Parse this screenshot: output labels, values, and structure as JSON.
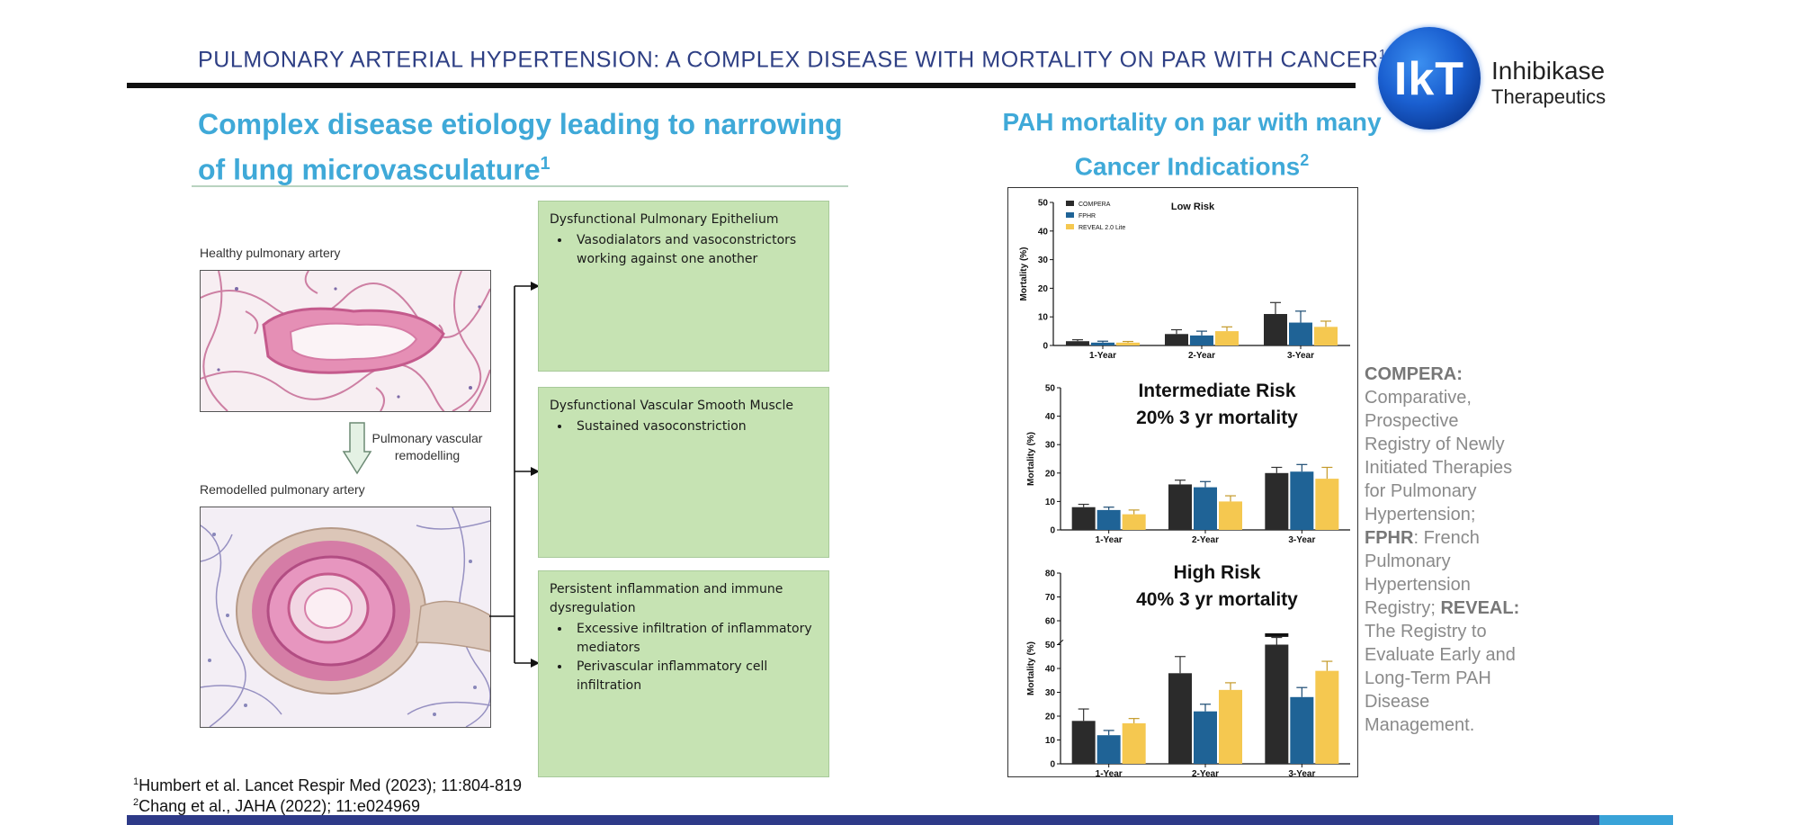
{
  "header": {
    "title": "PULMONARY ARTERIAL HYPERTENSION:  A COMPLEX DISEASE WITH MORTALITY ON PAR WITH CANCER",
    "title_sup": "1"
  },
  "logo": {
    "mark": "IkT",
    "name": "Inhibikase",
    "sub": "Therapeutics"
  },
  "left": {
    "heading": "Complex disease etiology leading to narrowing of lung microvasculature",
    "heading_sup": "1",
    "healthy_label": "Healthy pulmonary artery",
    "remodelling_label": "Pulmonary vascular remodelling",
    "remodelled_label": "Remodelled pulmonary artery",
    "boxes": [
      {
        "title": "Dysfunctional Pulmonary Epithelium",
        "bullets": [
          "Vasodialators and vasoconstrictors working against one another"
        ]
      },
      {
        "title": "Dysfunctional Vascular Smooth Muscle",
        "bullets": [
          "Sustained vasoconstriction"
        ]
      },
      {
        "title": "Persistent inflammation and immune dysregulation",
        "bullets": [
          "Excessive infiltration of inflammatory mediators",
          "Perivascular inflammatory cell infiltration"
        ]
      }
    ]
  },
  "right": {
    "heading_line1": "PAH mortality on par with many",
    "heading_line2": "Cancer Indications",
    "heading_sup": "2",
    "side_notes": {
      "compera_label": "COMPERA:",
      "compera_text": "Comparative, Prospective Registry of Newly Initiated Therapies for Pulmonary Hypertension;",
      "fphr_label": "FPHR",
      "fphr_text": ": French Pulmonary Hypertension Registry;",
      "reveal_label": "REVEAL:",
      "reveal_text": "The Registry to Evaluate Early and Long-Term PAH Disease Management."
    }
  },
  "colors": {
    "compera": "#2b2b2b",
    "fphr": "#1f6396",
    "reveal": "#f5c850"
  },
  "chart_data": [
    {
      "type": "bar",
      "title": "Low Risk",
      "categories": [
        "1-Year",
        "2-Year",
        "3-Year"
      ],
      "ylabel": "Mortality (%)",
      "ylim": [
        0,
        50
      ],
      "yticks": [
        0,
        10,
        20,
        30,
        40,
        50
      ],
      "legend": [
        "COMPERA",
        "FPHR",
        "REVEAL 2.0 Lite"
      ],
      "series": [
        {
          "name": "COMPERA",
          "values": [
            1.5,
            4,
            11
          ],
          "err": [
            0.5,
            1.5,
            4
          ]
        },
        {
          "name": "FPHR",
          "values": [
            1,
            3.5,
            8
          ],
          "err": [
            0.5,
            1.5,
            4
          ]
        },
        {
          "name": "REVEAL 2.0 Lite",
          "values": [
            1,
            5,
            6.5
          ],
          "err": [
            0.4,
            1.5,
            2
          ]
        }
      ]
    },
    {
      "type": "bar",
      "title": "Intermediate Risk",
      "subtitle": "20% 3 yr mortality",
      "categories": [
        "1-Year",
        "2-Year",
        "3-Year"
      ],
      "ylabel": "Mortality (%)",
      "ylim": [
        0,
        50
      ],
      "yticks": [
        0,
        10,
        20,
        30,
        40,
        50
      ],
      "series": [
        {
          "name": "COMPERA",
          "values": [
            8,
            16,
            20
          ],
          "err": [
            1,
            1.5,
            2
          ]
        },
        {
          "name": "FPHR",
          "values": [
            7,
            15,
            20.5
          ],
          "err": [
            1,
            2,
            2.5
          ]
        },
        {
          "name": "REVEAL 2.0 Lite",
          "values": [
            5.5,
            10,
            18
          ],
          "err": [
            1.5,
            2,
            4
          ]
        }
      ]
    },
    {
      "type": "bar",
      "title": "High Risk",
      "subtitle": "40% 3 yr mortality",
      "categories": [
        "1-Year",
        "2-Year",
        "3-Year"
      ],
      "ylabel": "Mortality (%)",
      "ylim": [
        0,
        80
      ],
      "yticks": [
        0,
        10,
        20,
        30,
        40,
        50,
        60,
        70,
        80
      ],
      "series": [
        {
          "name": "COMPERA",
          "values": [
            18,
            38,
            50
          ],
          "err": [
            5,
            7,
            3
          ]
        },
        {
          "name": "FPHR",
          "values": [
            12,
            22,
            28
          ],
          "err": [
            2,
            3,
            4
          ]
        },
        {
          "name": "REVEAL 2.0 Lite",
          "values": [
            17,
            31,
            39
          ],
          "err": [
            2,
            3,
            4
          ]
        }
      ]
    }
  ],
  "footnotes": [
    {
      "sup": "1",
      "text": "Humbert et al. Lancet Respir Med (2023); 11:804-819"
    },
    {
      "sup": "2",
      "text": "Chang et al., JAHA (2022); 11:e024969"
    }
  ]
}
